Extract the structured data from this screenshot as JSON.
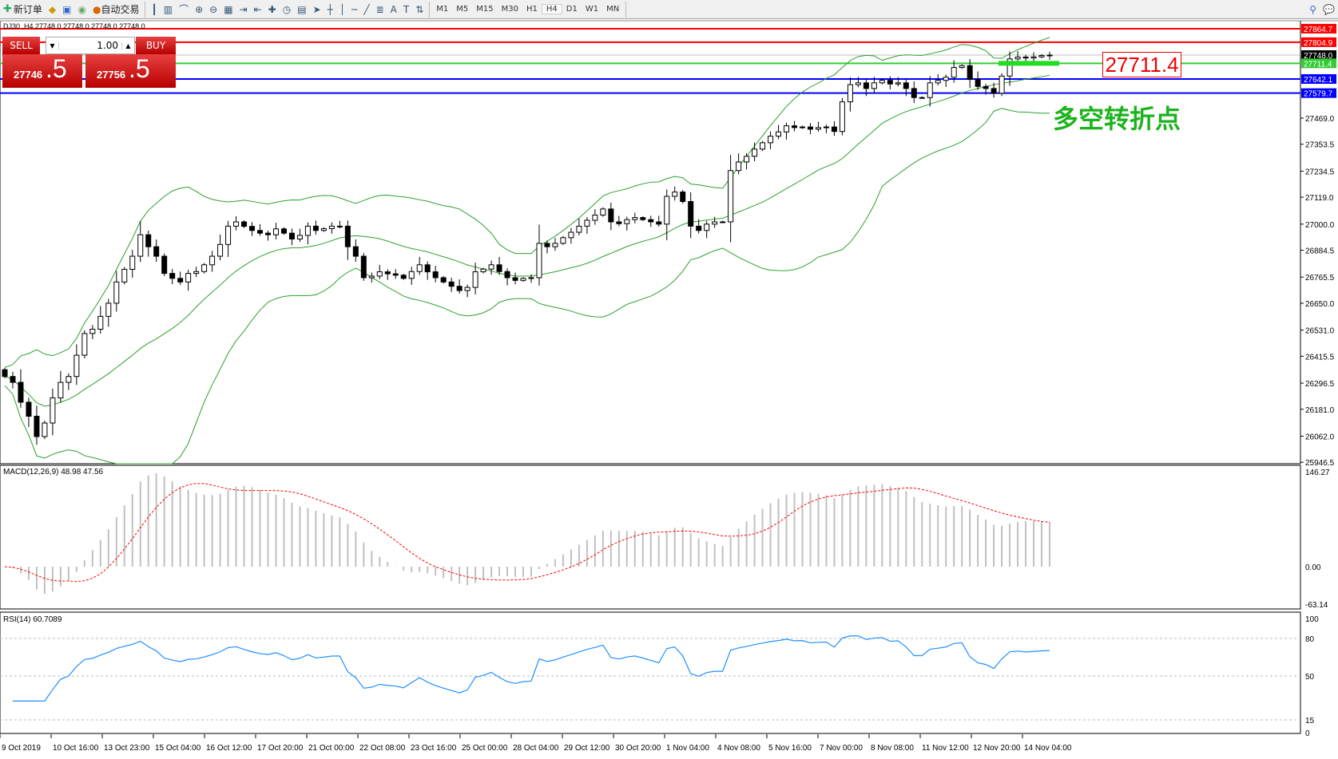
{
  "toolbar": {
    "new_order": "新订单",
    "auto_trading": "自动交易",
    "icons": [
      "chart-bar-icon",
      "candlestick-icon",
      "line-chart-icon",
      "zoom-in-icon",
      "zoom-out-icon",
      "tile-windows-icon",
      "autoscroll-icon",
      "chart-shift-icon",
      "indicators-icon",
      "periods-icon",
      "templates-icon",
      "cursor-icon",
      "crosshair-icon",
      "vertical-line-icon",
      "horizontal-line-icon",
      "trendline-icon",
      "fibonacci-icon",
      "text-icon",
      "text-label-icon",
      "arrows-icon"
    ],
    "text_tool": "A",
    "timeframes": [
      "M1",
      "M5",
      "M15",
      "M30",
      "H1",
      "H4",
      "D1",
      "W1",
      "MN"
    ],
    "active_timeframe": "H4"
  },
  "chart": {
    "header": "DJ30 ,H4  27748.0 27748.0 27748.0 27748.0",
    "trade_panel": {
      "sell_label": "SELL",
      "buy_label": "BUY",
      "volume": "1.00",
      "sell_big": "27746",
      "sell_small": ".5",
      "buy_big": "27756",
      "buy_small": ".5"
    },
    "annotation_price": "27711.4",
    "annotation_text": "多空转折点",
    "levels": [
      {
        "price": 27864.7,
        "label": "27864.7",
        "color": "#ff0000"
      },
      {
        "price": 27804.9,
        "label": "27804.9",
        "color": "#ff0000"
      },
      {
        "price": 27748.0,
        "label": "27748.0",
        "color": "#000000",
        "line": "#c0c0c0"
      },
      {
        "price": 27711.4,
        "label": "27711.4",
        "color": "#33cc33"
      },
      {
        "price": 27642.1,
        "label": "27642.1",
        "color": "#0000ff"
      },
      {
        "price": 27579.7,
        "label": "27579.7",
        "color": "#0000ff"
      }
    ],
    "price_ticks": [
      "27469.0",
      "27353.5",
      "27234.5",
      "27119.0",
      "27000.0",
      "26884.5",
      "26765.5",
      "26650.0",
      "26531.0",
      "26415.5",
      "26296.5",
      "26181.0",
      "26062.0",
      "25946.5"
    ],
    "macd_label": "MACD(12,26,9) 48.98 47.56",
    "macd_ticks": [
      "146.27",
      "0.00",
      "-63.14"
    ],
    "rsi_label": "RSI(14) 60.7089",
    "rsi_ticks": [
      "100",
      "80",
      "50",
      "15",
      "0"
    ],
    "time_labels": [
      "9 Oct 2019",
      "10 Oct 16:00",
      "13 Oct 23:00",
      "15 Oct 04:00",
      "16 Oct 12:00",
      "17 Oct 20:00",
      "21 Oct 00:00",
      "22 Oct 08:00",
      "23 Oct 16:00",
      "25 Oct 00:00",
      "28 Oct 04:00",
      "29 Oct 12:00",
      "30 Oct 20:00",
      "1 Nov 04:00",
      "4 Nov 08:00",
      "5 Nov 16:00",
      "7 Nov 00:00",
      "8 Nov 08:00",
      "11 Nov 12:00",
      "12 Nov 20:00",
      "14 Nov 04:00"
    ]
  },
  "chart_data": {
    "type": "candlestick",
    "symbol": "DJ30",
    "timeframe": "H4",
    "ylim": [
      25946.5,
      27864.7
    ],
    "closes": [
      26326,
      26300,
      26212,
      26150,
      26060,
      26120,
      26231,
      26300,
      26326,
      26420,
      26516,
      26535,
      26592,
      26650,
      26744,
      26800,
      26858,
      26953,
      26900,
      26858,
      26782,
      26760,
      26744,
      26782,
      26790,
      26820,
      26858,
      26910,
      26991,
      27010,
      26990,
      26972,
      26960,
      26953,
      26979,
      26960,
      26934,
      26950,
      26991,
      26972,
      26980,
      26991,
      26991,
      26900,
      26858,
      26763,
      26770,
      26789,
      26780,
      26774,
      26760,
      26790,
      26820,
      26789,
      26763,
      26744,
      26725,
      26706,
      26720,
      26789,
      26801,
      26820,
      26790,
      26763,
      26751,
      26760,
      26763,
      26915,
      26900,
      26915,
      26940,
      26964,
      26991,
      27017,
      27040,
      27067,
      27010,
      27002,
      27020,
      27029,
      27020,
      27010,
      27000,
      27123,
      27142,
      27100,
      26991,
      26972,
      27000,
      27010,
      27010,
      27237,
      27275,
      27300,
      27332,
      27360,
      27389,
      27408,
      27435,
      27427,
      27430,
      27420,
      27427,
      27430,
      27410,
      27541,
      27617,
      27625,
      27600,
      27625,
      27636,
      27620,
      27625,
      27600,
      27560,
      27560,
      27625,
      27636,
      27650,
      27693,
      27701,
      27640,
      27609,
      27600,
      27579,
      27655,
      27731,
      27739,
      27735,
      27740,
      27746,
      27748
    ],
    "indicators": {
      "bollinger": {
        "period": 20,
        "deviation": 2,
        "color": "#2ca02c"
      },
      "macd": {
        "fast": 12,
        "slow": 26,
        "signal": 9,
        "ylim": [
          -63.14,
          146.27
        ]
      },
      "rsi": {
        "period": 14,
        "levels": [
          80,
          50,
          15
        ]
      }
    }
  }
}
